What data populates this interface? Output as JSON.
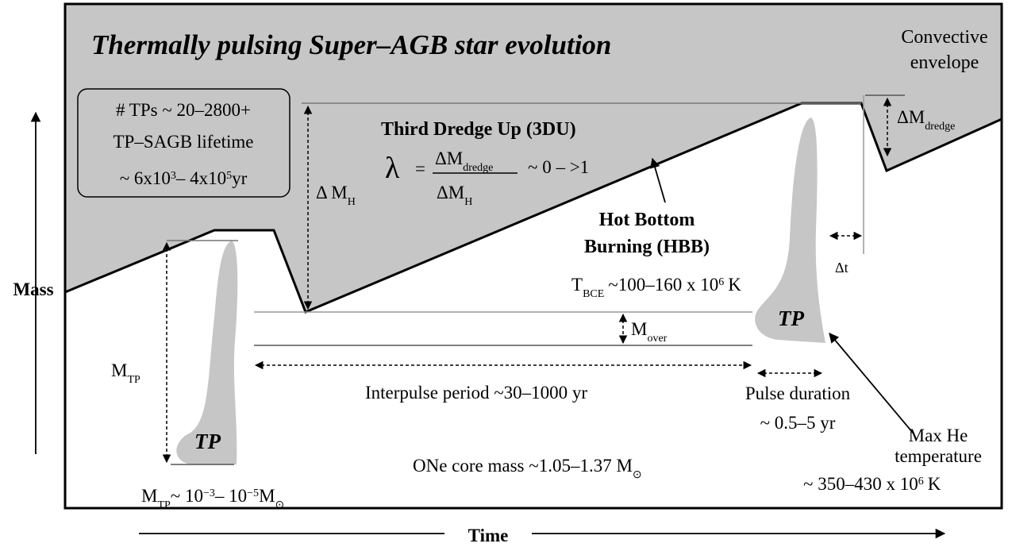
{
  "title": "Thermally pulsing Super–AGB star evolution",
  "convective_envelope": [
    "Convective",
    "envelope"
  ],
  "info_box": {
    "tps": "# TPs ~ 20–2800+",
    "lifetime": "TP–SAGB lifetime",
    "range": [
      "~ 6x10",
      "3",
      "– 4x10",
      "5",
      "yr"
    ]
  },
  "third_dredge_up": {
    "title": "Third Dredge Up (3DU)",
    "lambda": "λ",
    "equals": "=",
    "numerator": [
      "ΔM",
      "dredge"
    ],
    "denominator": [
      "ΔM",
      "H"
    ],
    "value": "~ 0 – >1"
  },
  "delta_mh": [
    "Δ M",
    "H"
  ],
  "delta_m_dredge": [
    "ΔM",
    "dredge"
  ],
  "hbb": {
    "lines": [
      "Hot Bottom",
      "Burning (HBB)"
    ],
    "temperature": [
      "T",
      "BCE",
      "~100–160 x 10",
      "6",
      "K"
    ]
  },
  "delta_t": "Δt",
  "tp_labels": [
    "TP",
    "TP"
  ],
  "m_over": [
    "M",
    "over"
  ],
  "m_tp": [
    "M",
    "TP"
  ],
  "interpulse": "Interpulse period ~30–1000 yr",
  "pulse_duration": [
    "Pulse duration",
    "~ 0.5–5 yr"
  ],
  "max_he": {
    "lines": [
      "Max He",
      "temperature"
    ],
    "value": [
      "~ 350–430 x 10",
      "6",
      "K"
    ]
  },
  "core_mass": [
    "ONe core mass ~1.05–1.37 M",
    "⊙"
  ],
  "m_tp_range": [
    "M",
    "TP",
    "~ 10",
    "−3",
    "– 10",
    "−5",
    "M",
    "⊙"
  ],
  "axes": {
    "y": "Mass",
    "x": "Time"
  }
}
